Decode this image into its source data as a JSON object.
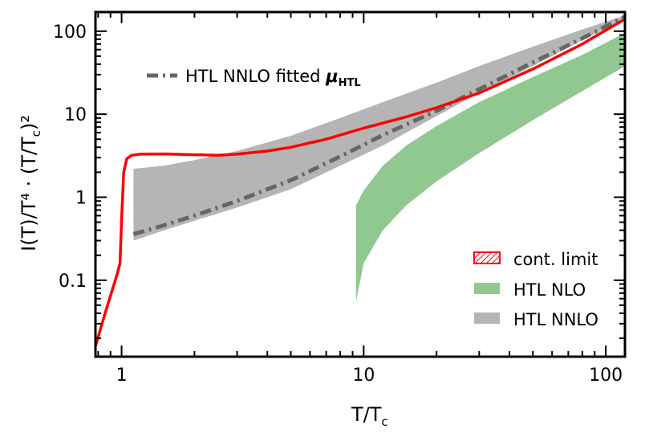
{
  "chart_data": {
    "type": "line",
    "xscale": "log",
    "yscale": "log",
    "xlim": [
      0.78,
      120
    ],
    "ylim": [
      0.012,
      170
    ],
    "xlabel": "T/T",
    "xlabel_sub": "c",
    "ylabel": "I(T)/T⁴ · (T/T",
    "ylabel_sub": "c",
    "ylabel_tail": ")²",
    "x_ticks": [
      {
        "value": 1,
        "label": "1"
      },
      {
        "value": 10,
        "label": "10"
      },
      {
        "value": 100,
        "label": "100"
      }
    ],
    "y_ticks": [
      {
        "value": 0.1,
        "label": "0.1"
      },
      {
        "value": 1,
        "label": "1"
      },
      {
        "value": 10,
        "label": "10"
      },
      {
        "value": 100,
        "label": "100"
      }
    ],
    "legend_top": {
      "label": "HTL NNLO fitted ",
      "label_mu": "μ",
      "label_sub": "HTL",
      "color": "#666666"
    },
    "legend": [
      {
        "label": "cont. limit",
        "color": "#ff0000",
        "style": "hatched"
      },
      {
        "label": "HTL NLO",
        "color": "#90c890",
        "style": "band"
      },
      {
        "label": "HTL NNLO",
        "color": "#b5b5b5",
        "style": "band"
      }
    ],
    "series": [
      {
        "name": "HTL NNLO",
        "kind": "band",
        "color": "#b5b5b5",
        "upper": [
          [
            1.12,
            2.2
          ],
          [
            1.5,
            2.4
          ],
          [
            2,
            2.8
          ],
          [
            3,
            3.6
          ],
          [
            5,
            5.5
          ],
          [
            8,
            9.0
          ],
          [
            12,
            14
          ],
          [
            20,
            24
          ],
          [
            30,
            38
          ],
          [
            50,
            65
          ],
          [
            80,
            105
          ],
          [
            120,
            155
          ]
        ],
        "lower": [
          [
            1.12,
            0.3
          ],
          [
            1.5,
            0.4
          ],
          [
            2,
            0.52
          ],
          [
            3,
            0.75
          ],
          [
            5,
            1.25
          ],
          [
            8,
            2.4
          ],
          [
            12,
            4.2
          ],
          [
            20,
            9.5
          ],
          [
            30,
            18
          ],
          [
            50,
            38
          ],
          [
            80,
            78
          ],
          [
            120,
            140
          ]
        ]
      },
      {
        "name": "HTL NLO",
        "kind": "band",
        "color": "#90c890",
        "upper": [
          [
            9.3,
            0.8
          ],
          [
            10,
            1.2
          ],
          [
            12,
            2.4
          ],
          [
            15,
            4.2
          ],
          [
            20,
            7.2
          ],
          [
            30,
            14
          ],
          [
            50,
            28
          ],
          [
            80,
            52
          ],
          [
            120,
            95
          ]
        ],
        "lower": [
          [
            9.3,
            0.055
          ],
          [
            10,
            0.16
          ],
          [
            12,
            0.4
          ],
          [
            15,
            0.8
          ],
          [
            20,
            1.55
          ],
          [
            30,
            3.4
          ],
          [
            50,
            8.5
          ],
          [
            80,
            19
          ],
          [
            120,
            38
          ]
        ]
      },
      {
        "name": "HTL NNLO fitted μHTL",
        "kind": "line",
        "color": "#666666",
        "dash": "14,6,3,6",
        "points": [
          [
            1.12,
            0.36
          ],
          [
            1.5,
            0.46
          ],
          [
            2,
            0.6
          ],
          [
            3,
            0.9
          ],
          [
            5,
            1.6
          ],
          [
            8,
            3.1
          ],
          [
            12,
            5.6
          ],
          [
            20,
            11
          ],
          [
            30,
            20
          ],
          [
            50,
            42
          ],
          [
            80,
            82
          ],
          [
            120,
            150
          ]
        ]
      },
      {
        "name": "cont. limit",
        "kind": "line",
        "color": "#ff0000",
        "points": [
          [
            0.78,
            0.016
          ],
          [
            0.85,
            0.038
          ],
          [
            0.92,
            0.08
          ],
          [
            0.96,
            0.12
          ],
          [
            0.985,
            0.16
          ],
          [
            1.0,
            0.55
          ],
          [
            1.02,
            2.0
          ],
          [
            1.05,
            2.9
          ],
          [
            1.1,
            3.2
          ],
          [
            1.2,
            3.3
          ],
          [
            1.5,
            3.32
          ],
          [
            2,
            3.25
          ],
          [
            2.5,
            3.2
          ],
          [
            3,
            3.3
          ],
          [
            4,
            3.6
          ],
          [
            5,
            4.0
          ],
          [
            7,
            5.0
          ],
          [
            10,
            6.8
          ],
          [
            15,
            9.3
          ],
          [
            20,
            12
          ],
          [
            30,
            18
          ],
          [
            50,
            35
          ],
          [
            80,
            70
          ],
          [
            120,
            140
          ]
        ]
      }
    ]
  }
}
